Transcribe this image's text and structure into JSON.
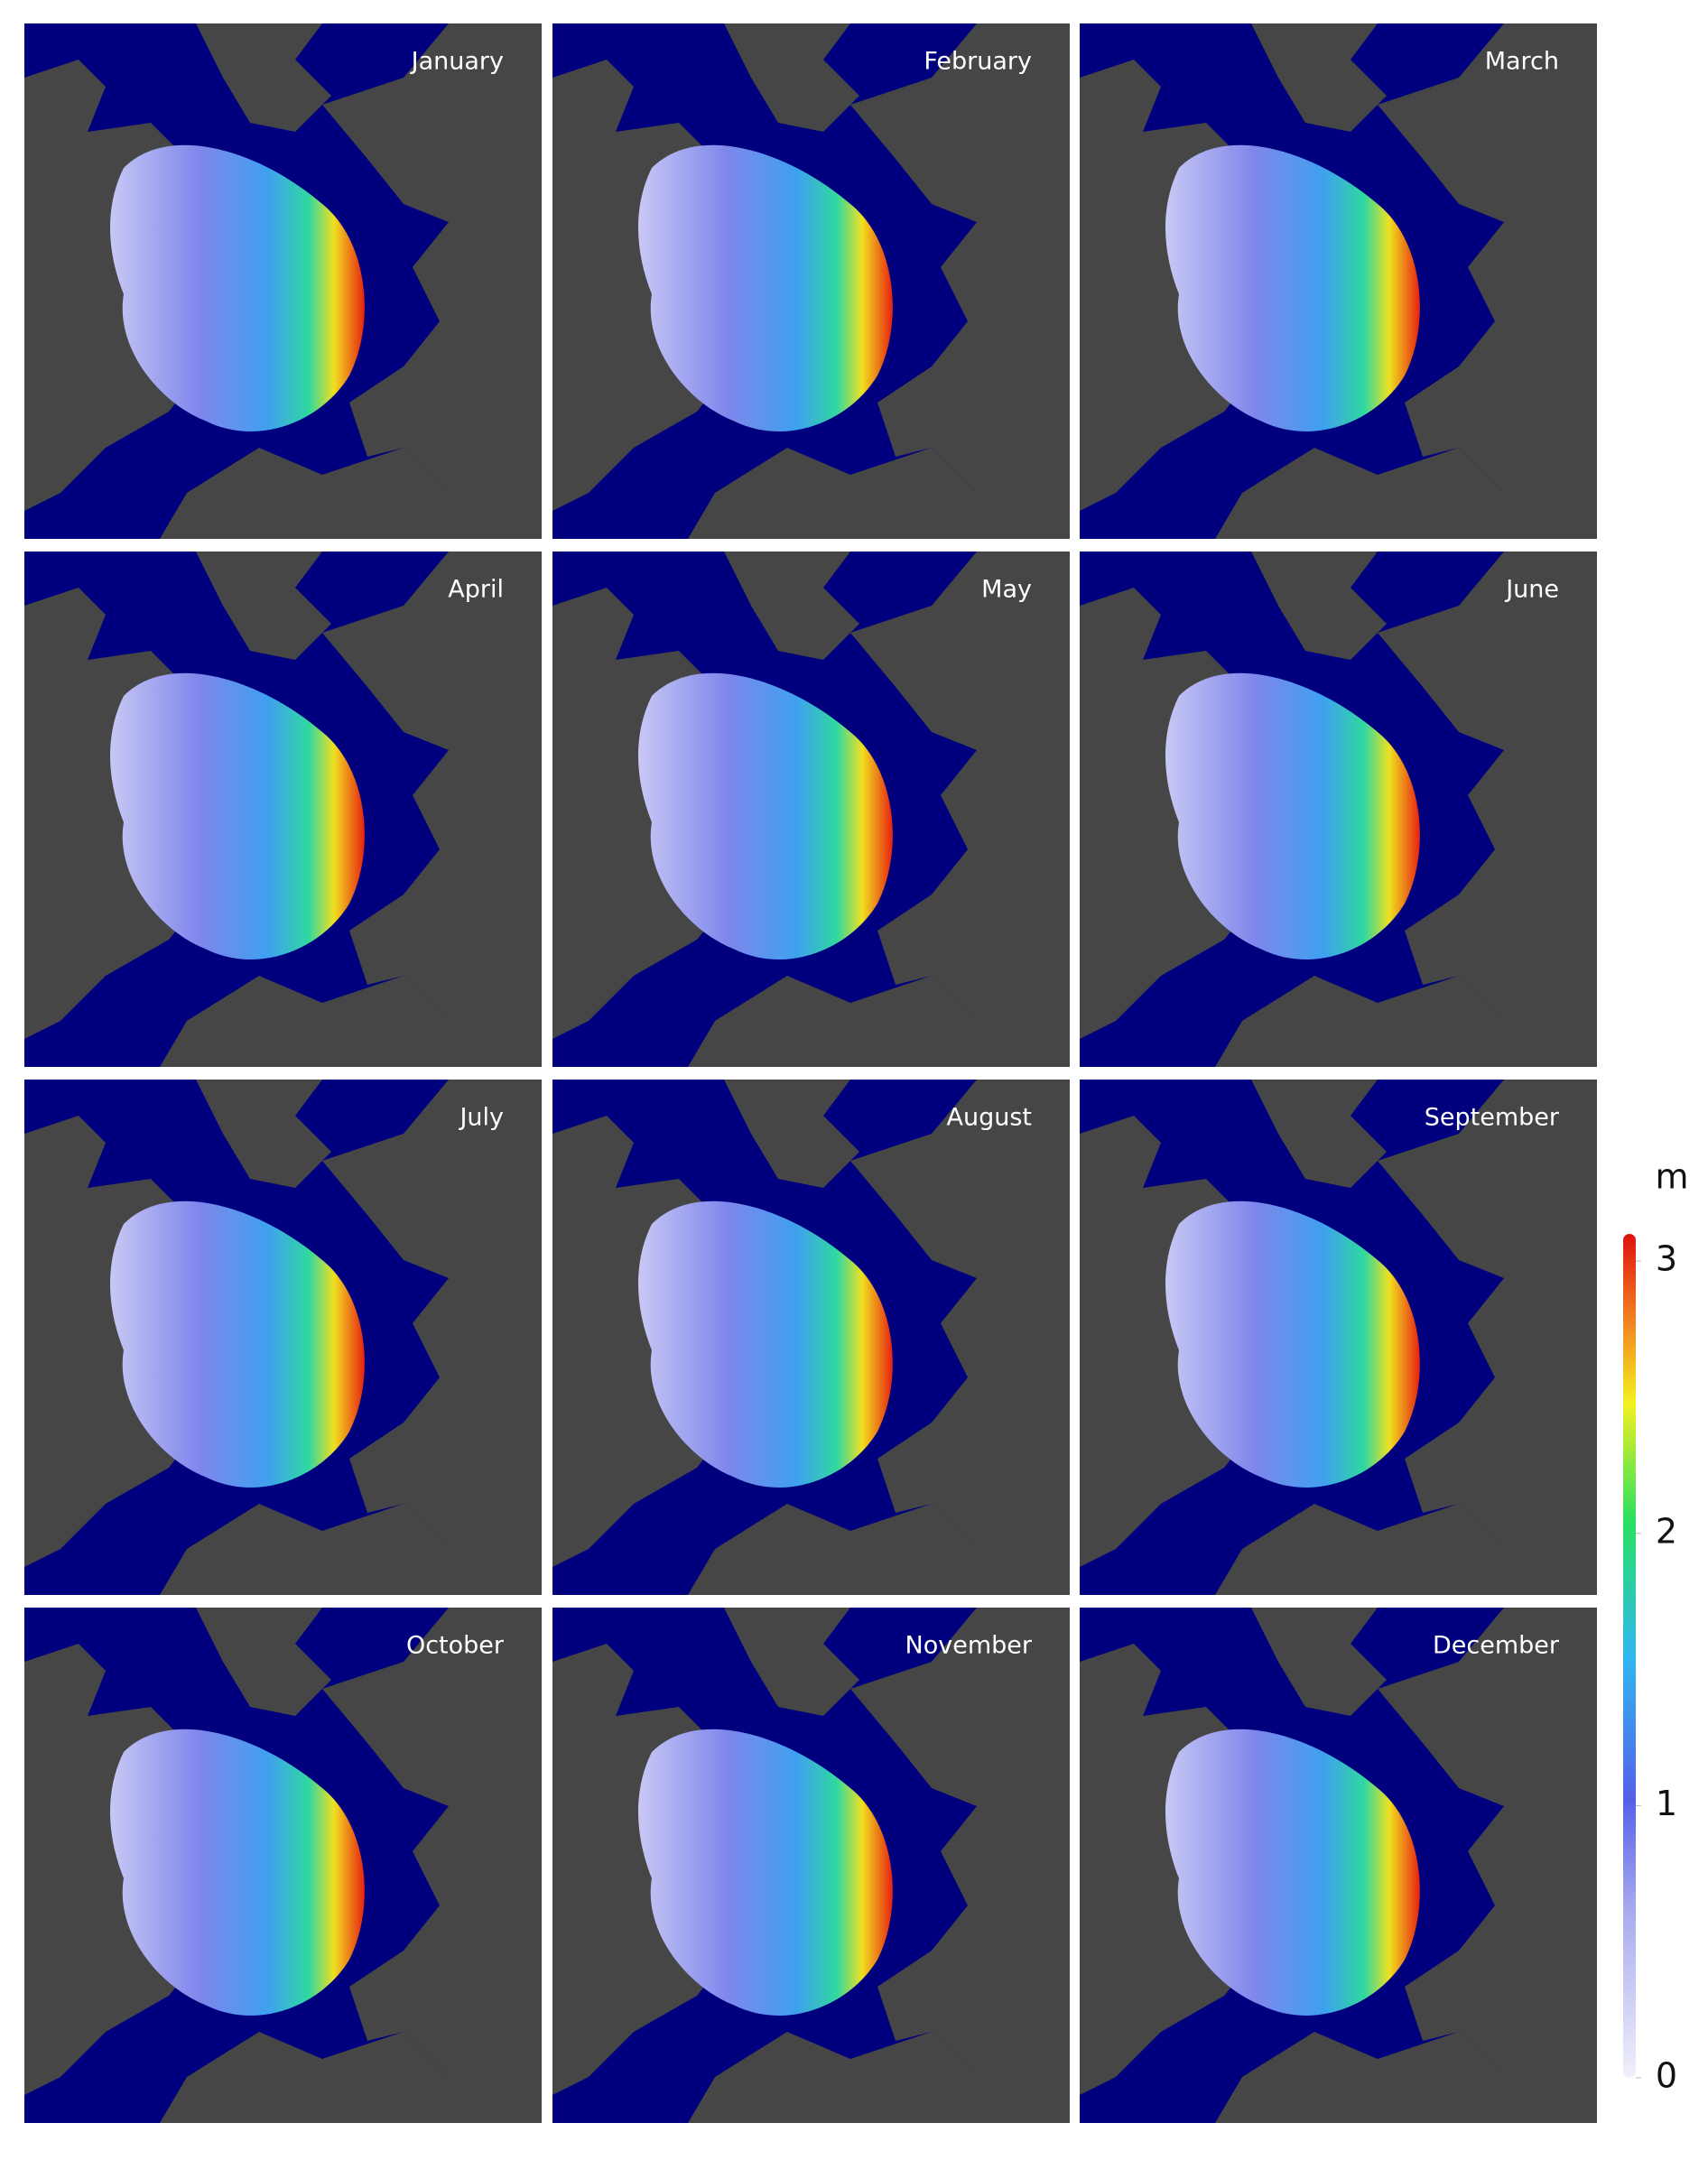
{
  "panels": [
    {
      "label": "January"
    },
    {
      "label": "February"
    },
    {
      "label": "March"
    },
    {
      "label": "April"
    },
    {
      "label": "May"
    },
    {
      "label": "June"
    },
    {
      "label": "July"
    },
    {
      "label": "August"
    },
    {
      "label": "September"
    },
    {
      "label": "October"
    },
    {
      "label": "November"
    },
    {
      "label": "December"
    }
  ],
  "colorbar": {
    "unit": "m",
    "lim": [
      0,
      3.1
    ],
    "ticks": [
      0,
      1,
      2,
      3
    ]
  }
}
